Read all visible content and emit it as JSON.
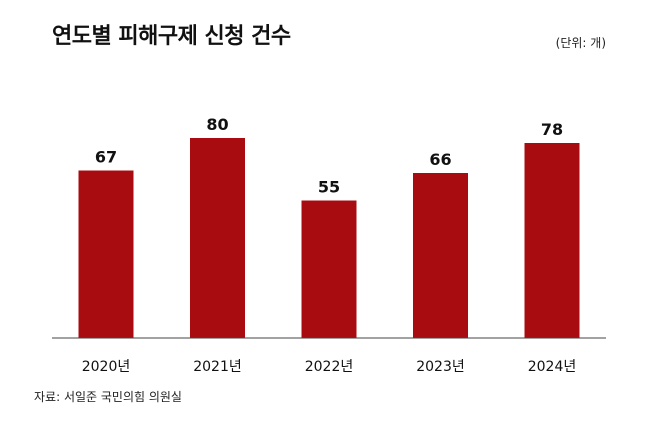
{
  "chart_data": {
    "type": "bar",
    "title": "연도별 피해구제 신청 건수",
    "unit": "(단위: 개)",
    "categories": [
      "2020년",
      "2021년",
      "2022년",
      "2023년",
      "2024년"
    ],
    "values": [
      67,
      80,
      55,
      66,
      78
    ],
    "ylim": [
      0,
      100
    ],
    "grid": false,
    "bar_color": "#a80c10",
    "source": "자료: 서일준 국민의힘 의원실"
  }
}
